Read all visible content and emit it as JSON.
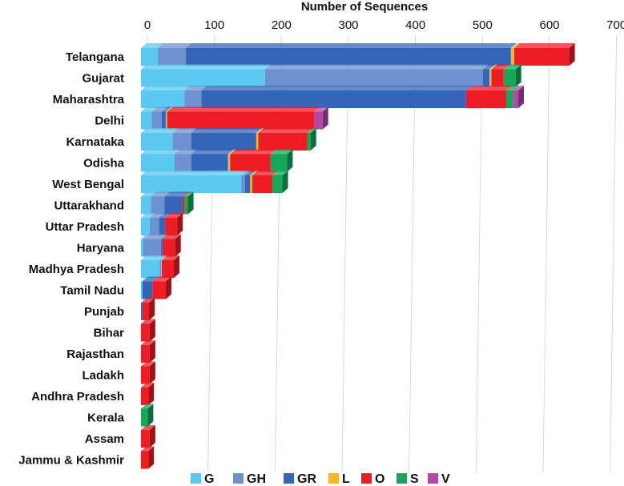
{
  "chart_data": {
    "type": "bar",
    "orientation": "horizontal",
    "stacked": true,
    "title": "Number of Sequences",
    "xlabel": "Number of Sequences",
    "ylabel": "",
    "xlim": [
      0,
      700
    ],
    "xticks": [
      "0",
      "100",
      "200",
      "300",
      "400",
      "500",
      "600",
      "700"
    ],
    "categories": [
      "Telangana",
      "Gujarat",
      "Maharashtra",
      "Delhi",
      "Karnataka",
      "Odisha",
      "West Bengal",
      "Uttarakhand",
      "Uttar Pradesh",
      "Haryana",
      "Madhya Pradesh",
      "Tamil Nadu",
      "Punjab",
      "Bihar",
      "Rajasthan",
      "Ladakh",
      "Andhra Pradesh",
      "Kerala",
      "Assam",
      "Jammu & Kashmir"
    ],
    "series": [
      {
        "name": "G",
        "color": "#5bc8f0",
        "values": [
          25,
          185,
          65,
          16,
          47,
          50,
          150,
          15,
          13,
          3,
          28,
          2,
          0,
          0,
          0,
          0,
          0,
          0,
          0,
          0
        ]
      },
      {
        "name": "GH",
        "color": "#6e91cf",
        "values": [
          42,
          325,
          25,
          15,
          28,
          25,
          5,
          20,
          14,
          27,
          2,
          0,
          0,
          0,
          0,
          0,
          0,
          0,
          0,
          0
        ]
      },
      {
        "name": "GR",
        "color": "#3366b8",
        "values": [
          485,
          10,
          395,
          6,
          97,
          55,
          8,
          27,
          9,
          2,
          0,
          15,
          2,
          0,
          0,
          0,
          0,
          0,
          0,
          0
        ]
      },
      {
        "name": "L",
        "color": "#f5b82a",
        "values": [
          5,
          3,
          0,
          2,
          3,
          3,
          3,
          0,
          0,
          0,
          1,
          0,
          0,
          0,
          0,
          0,
          0,
          0,
          0,
          0
        ]
      },
      {
        "name": "O",
        "color": "#ee1c25",
        "values": [
          82,
          18,
          60,
          220,
          73,
          60,
          30,
          3,
          18,
          19,
          18,
          20,
          10,
          13,
          13,
          13,
          11,
          0,
          13,
          11
        ]
      },
      {
        "name": "S",
        "color": "#16a85a",
        "values": [
          0,
          18,
          10,
          0,
          5,
          25,
          15,
          5,
          0,
          0,
          0,
          0,
          0,
          0,
          0,
          0,
          0,
          10,
          0,
          0
        ]
      },
      {
        "name": "V",
        "color": "#b04aa6",
        "values": [
          0,
          0,
          8,
          12,
          0,
          0,
          0,
          0,
          0,
          0,
          0,
          0,
          0,
          0,
          0,
          0,
          0,
          0,
          0,
          0
        ]
      }
    ],
    "grid": true,
    "legend_position": "bottom"
  }
}
